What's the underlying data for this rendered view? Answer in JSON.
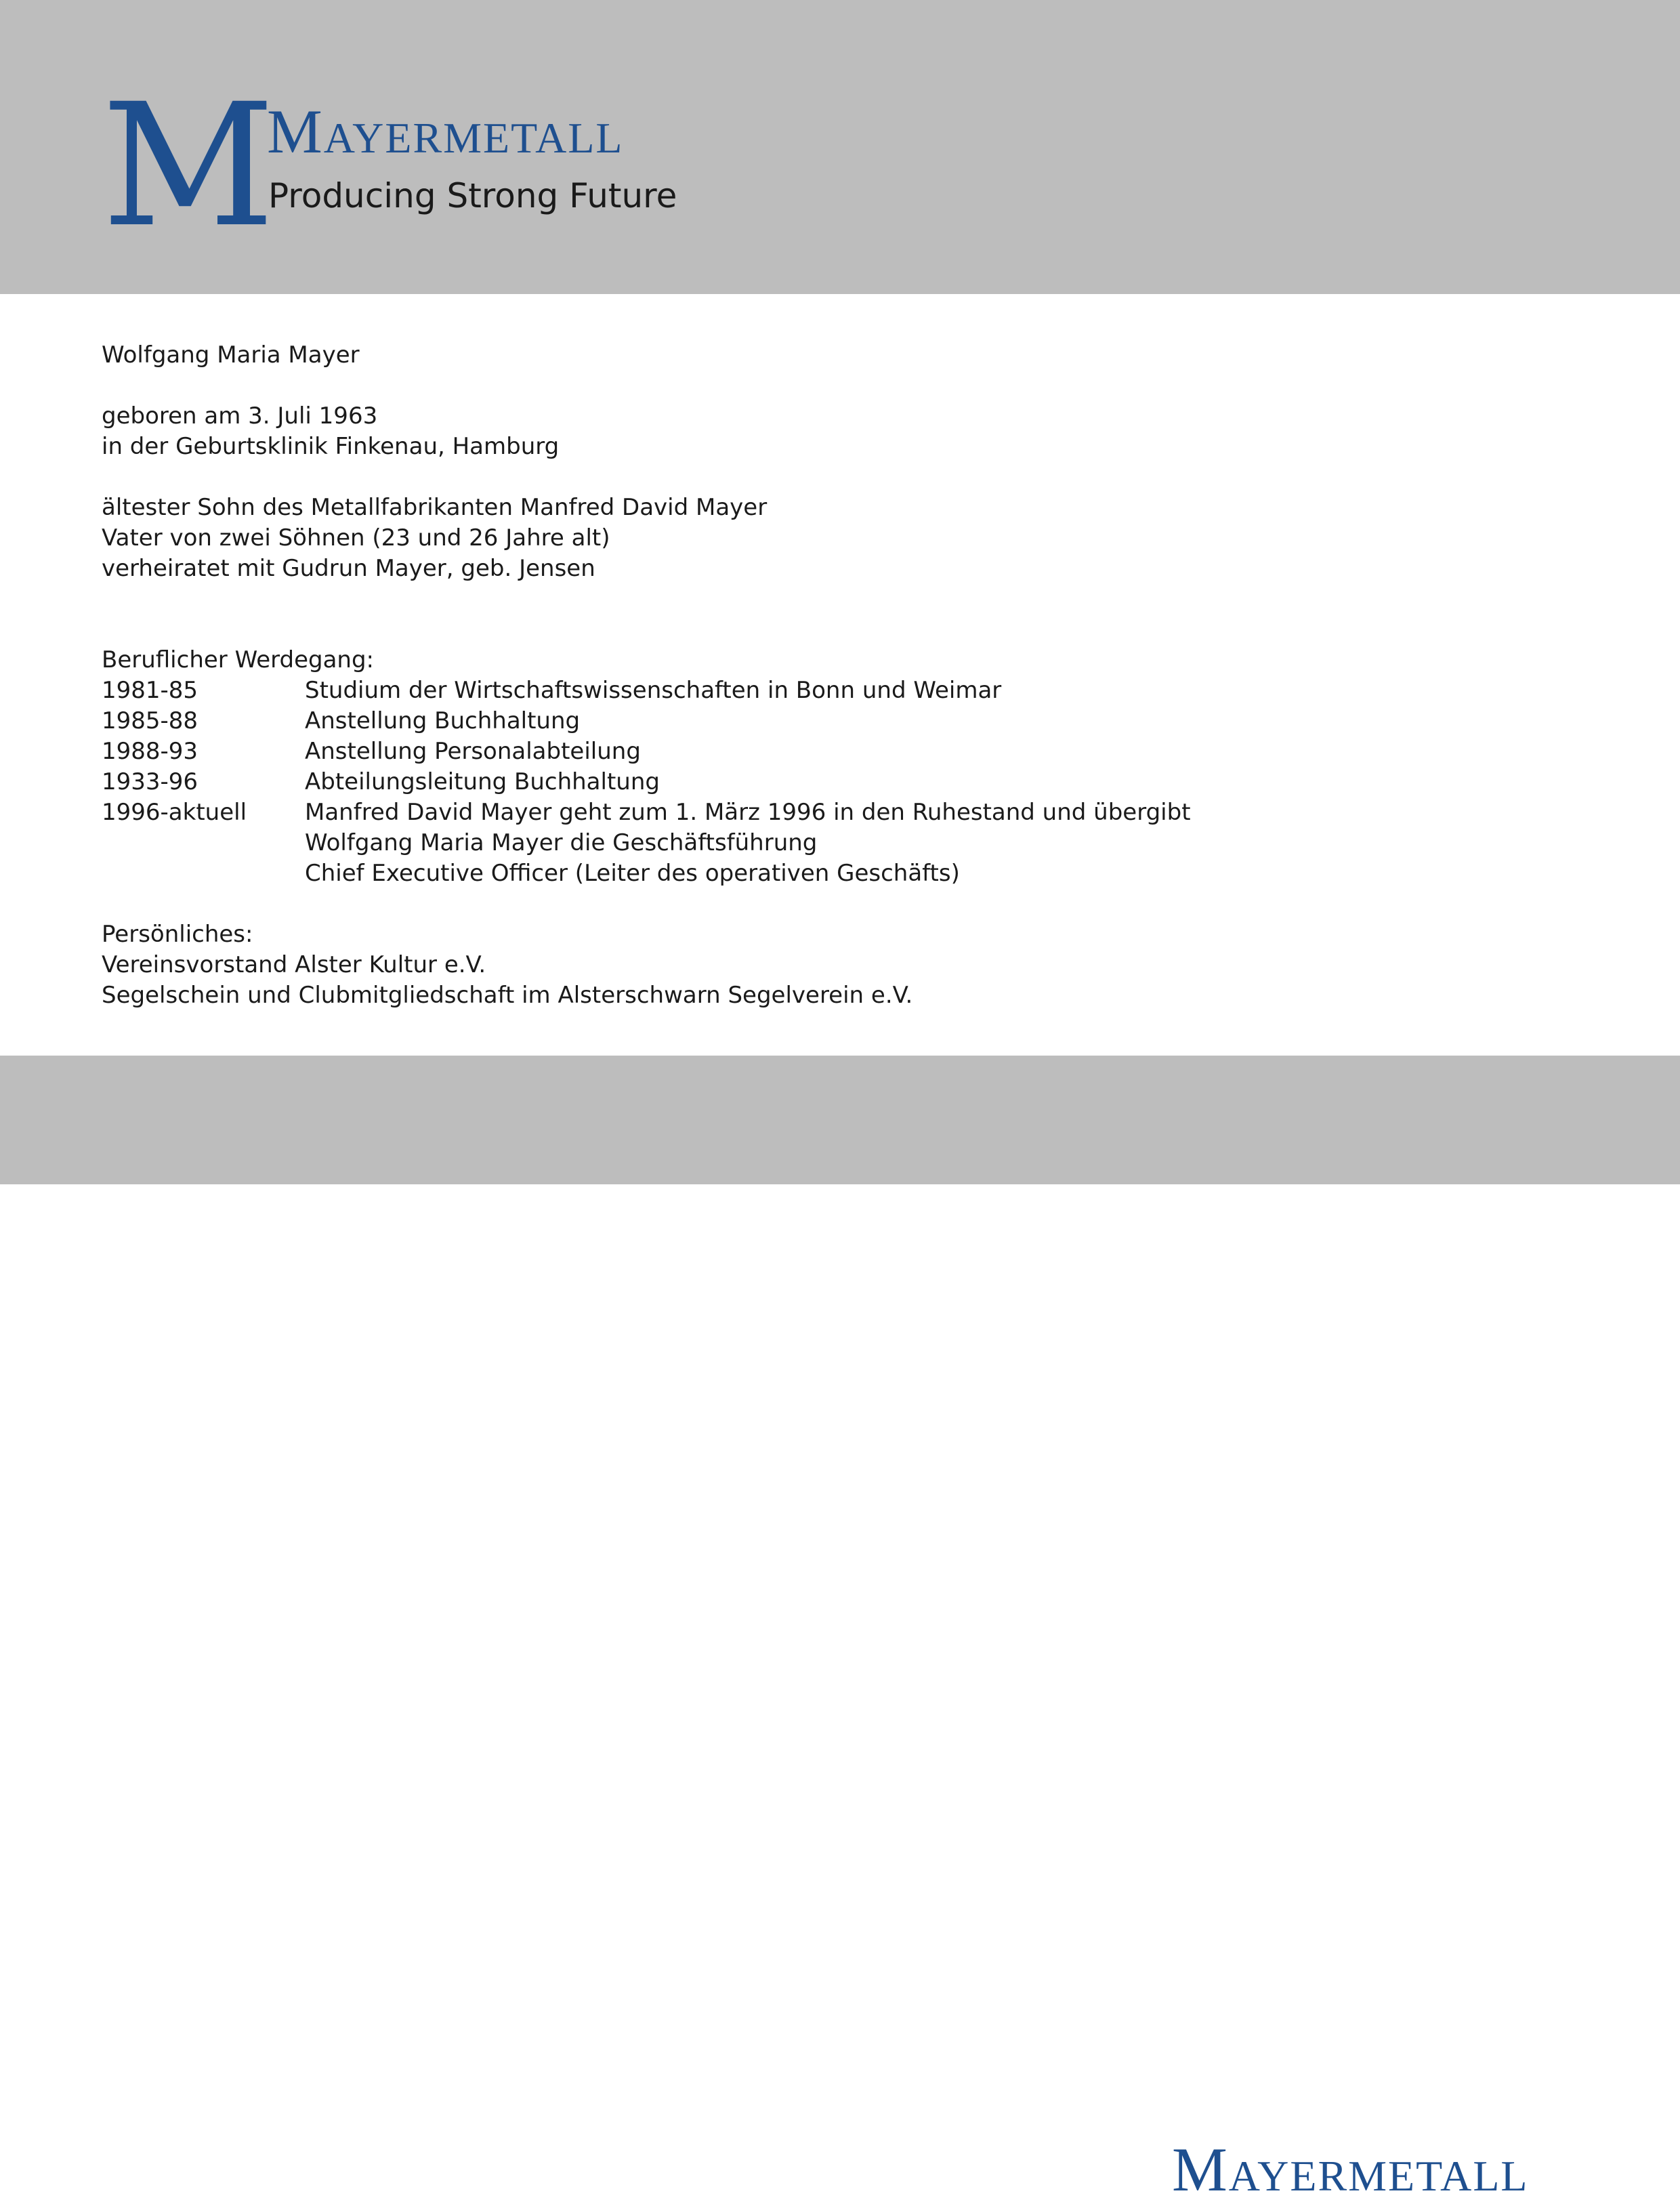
{
  "header": {
    "logo_letter": "M",
    "brand_name": "Mayermetall",
    "tagline": "Producing Strong Future"
  },
  "person": {
    "name": "Wolfgang Maria Mayer",
    "birth_line1": "geboren am 3. Juli 1963",
    "birth_line2": "in der Geburtsklinik Finkenau, Hamburg",
    "family": [
      "ältester Sohn des Metallfabrikanten Manfred David Mayer",
      "Vater von zwei Söhnen (23 und 26 Jahre alt)",
      "verheiratet mit Gudrun Mayer, geb. Jensen"
    ]
  },
  "career": {
    "heading": "Beruflicher Werdegang:",
    "entries": [
      {
        "years": "1981-85",
        "lines": [
          "Studium der Wirtschaftswissenschaften in Bonn und Weimar"
        ]
      },
      {
        "years": "1985-88",
        "lines": [
          "Anstellung Buchhaltung"
        ]
      },
      {
        "years": "1988-93",
        "lines": [
          "Anstellung Personalabteilung"
        ]
      },
      {
        "years": "1933-96",
        "lines": [
          "Abteilungsleitung Buchhaltung"
        ]
      },
      {
        "years": "1996-aktuell",
        "lines": [
          "Manfred David Mayer geht zum 1. März 1996 in den Ruhestand und übergibt",
          "Wolfgang Maria Mayer die Geschäftsführung",
          "Chief Executive Officer (Leiter des operativen Geschäfts)"
        ]
      }
    ]
  },
  "personal": {
    "heading": "Persönliches:",
    "items": [
      "Vereinsvorstand Alster Kultur e.V.",
      "Segelschein und Clubmitgliedschaft im Alsterschwarn Segelverein e.V."
    ]
  },
  "footer": {
    "brand_name": "Mayermetall"
  },
  "colors": {
    "brand_blue": "#1e4f8f",
    "band_gray": "#bdbdbd"
  }
}
